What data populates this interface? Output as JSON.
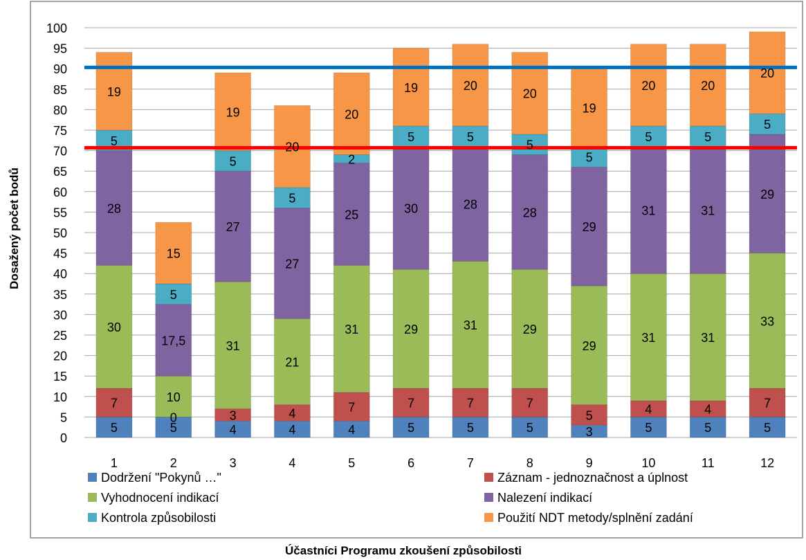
{
  "title_fragment": "",
  "chart_data": {
    "type": "bar",
    "stacked": true,
    "xlabel": "Účastníci Programu zkoušení způsobilosti",
    "ylabel": "Dosažený počet bodů",
    "ylim": [
      0,
      100
    ],
    "yticks": [
      0,
      5,
      10,
      15,
      20,
      25,
      30,
      35,
      40,
      45,
      50,
      55,
      60,
      65,
      70,
      75,
      80,
      85,
      90,
      95,
      100
    ],
    "grid": true,
    "legend_position": "bottom",
    "categories": [
      "1",
      "2",
      "3",
      "4",
      "5",
      "6",
      "7",
      "8",
      "9",
      "10",
      "11",
      "12"
    ],
    "series": [
      {
        "name": "Dodržení \"Pokynů …\"",
        "color": "#4f81bd",
        "values": [
          5,
          5,
          4,
          4,
          4,
          5,
          5,
          5,
          3,
          5,
          5,
          5
        ],
        "labels": [
          "5",
          "5",
          "4",
          "4",
          "4",
          "5",
          "5",
          "5",
          "3",
          "5",
          "5",
          "5"
        ]
      },
      {
        "name": "Záznam - jednoznačnost a úplnost",
        "color": "#c0504d",
        "values": [
          7,
          0,
          3,
          4,
          7,
          7,
          7,
          7,
          5,
          4,
          4,
          7
        ],
        "labels": [
          "7",
          "0",
          "3",
          "4",
          "7",
          "7",
          "7",
          "7",
          "5",
          "4",
          "4",
          "7"
        ]
      },
      {
        "name": "Vyhodnocení indikací",
        "color": "#9bbb59",
        "values": [
          30,
          10,
          31,
          21,
          31,
          29,
          31,
          29,
          29,
          31,
          31,
          33
        ],
        "labels": [
          "30",
          "10",
          "31",
          "21",
          "31",
          "29",
          "31",
          "29",
          "29",
          "31",
          "31",
          "33"
        ]
      },
      {
        "name": "Nalezení indikací",
        "color": "#8064a2",
        "values": [
          28,
          17.5,
          27,
          27,
          25,
          30,
          28,
          28,
          29,
          31,
          31,
          29
        ],
        "labels": [
          "28",
          "17,5",
          "27",
          "27",
          "25",
          "30",
          "28",
          "28",
          "29",
          "31",
          "31",
          "29"
        ]
      },
      {
        "name": "Kontrola způsobilosti",
        "color": "#4bacc6",
        "values": [
          5,
          5,
          5,
          5,
          2,
          5,
          5,
          5,
          5,
          5,
          5,
          5
        ],
        "labels": [
          "5",
          "5",
          "5",
          "5",
          "2",
          "5",
          "5",
          "5",
          "5",
          "5",
          "5",
          "5"
        ]
      },
      {
        "name": "Použití NDT metody/splnění zadání",
        "color": "#f79646",
        "values": [
          19,
          15,
          19,
          20,
          20,
          19,
          20,
          20,
          19,
          20,
          20,
          20
        ],
        "labels": [
          "19",
          "15",
          "19",
          "20",
          "20",
          "19",
          "20",
          "20",
          "19",
          "20",
          "20",
          "20"
        ]
      }
    ],
    "reference_lines": [
      {
        "value": 90.3,
        "color": "#0070c0"
      },
      {
        "value": 70.7,
        "color": "#ff0000"
      }
    ]
  }
}
